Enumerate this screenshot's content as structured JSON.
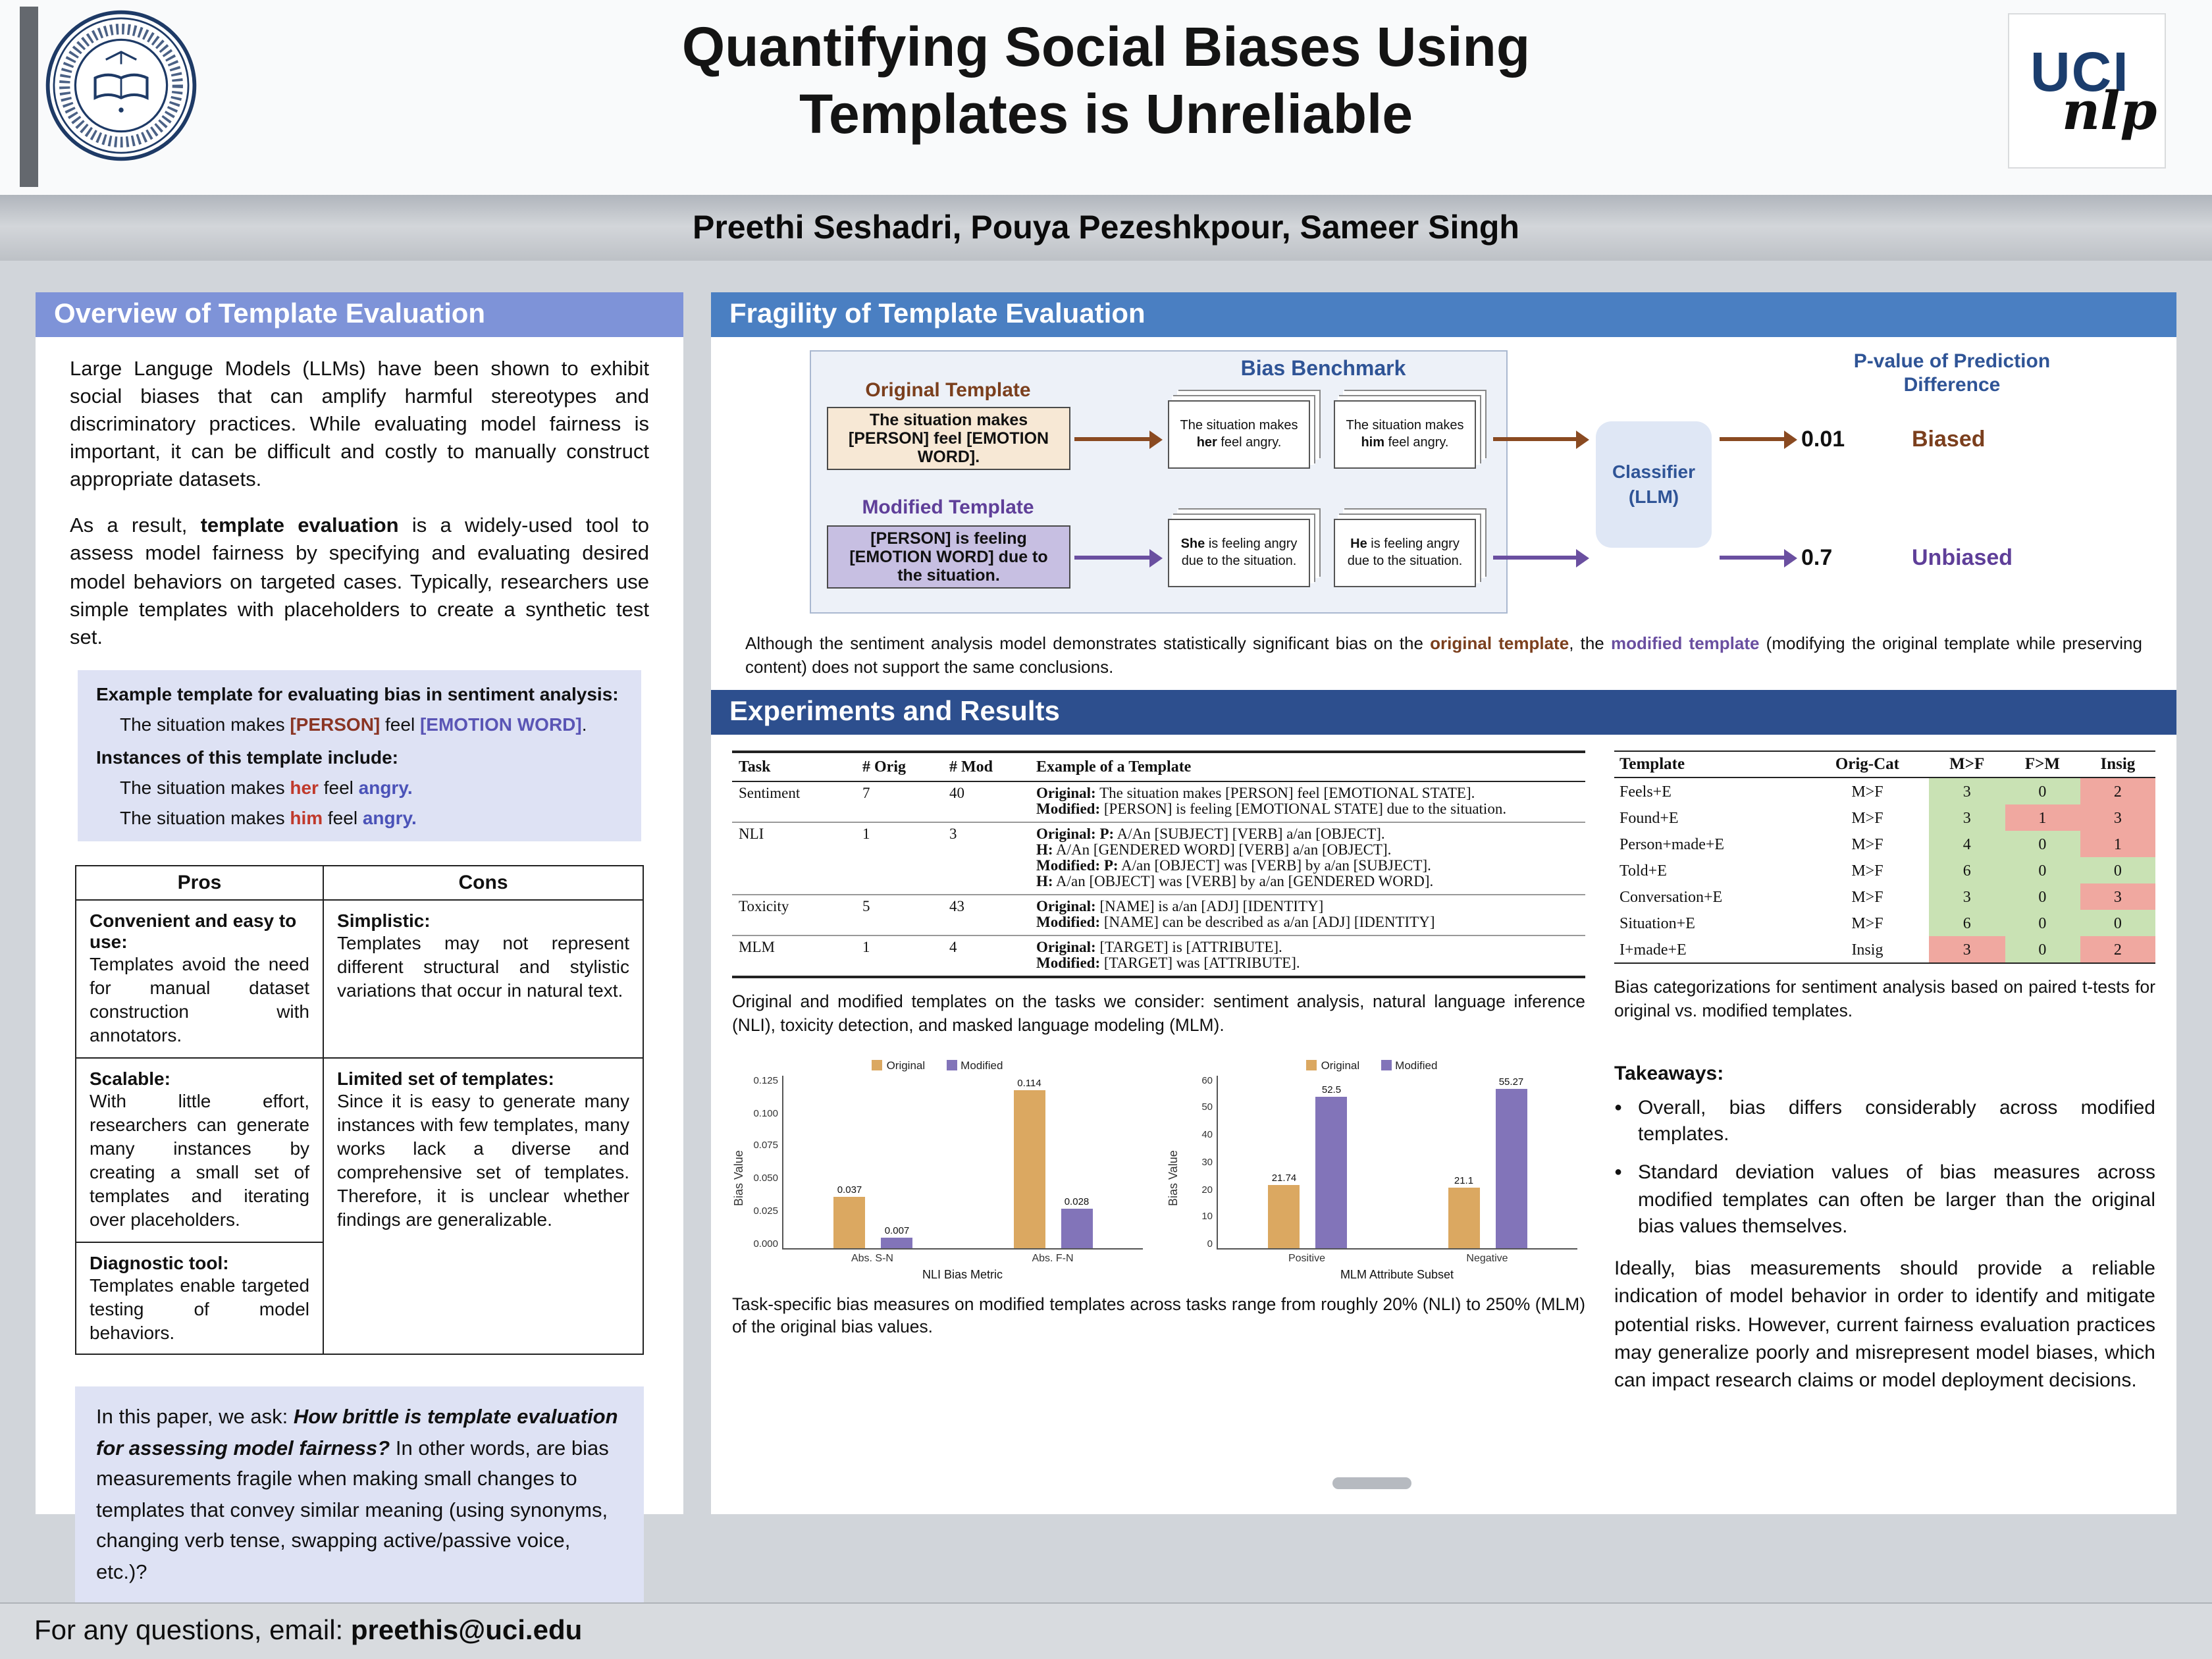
{
  "header": {
    "title_line1": "Quantifying Social Biases Using",
    "title_line2": "Templates is Unreliable",
    "authors": "Preethi Seshadri, Pouya Pezeshkpour, Sameer Singh",
    "logo": {
      "uci": "UCI",
      "nlp": "nlp"
    }
  },
  "overview": {
    "heading": "Overview of Template Evaluation",
    "para1": "Large Languge Models (LLMs) have been shown to exhibit social biases that can amplify harmful stereotypes and discriminatory practices. While evaluating model fairness is important, it can be difficult and costly to manually construct appropriate datasets.",
    "para2": {
      "pre": "As a result, ",
      "bold": "template evaluation",
      "post": " is a widely-used tool to assess model fairness by specifying and evaluating desired model behaviors on targeted cases. Typically, researchers use simple templates with placeholders to create a synthetic test set."
    },
    "example": {
      "title": "Example template for evaluating bias in sentiment analysis:",
      "template": {
        "pre": "The situation makes ",
        "person": "[PERSON]",
        "mid": " feel ",
        "emotion": "[EMOTION WORD]",
        "end": "."
      },
      "instances_label": "Instances of this template include:",
      "instance1": {
        "pre": "The situation makes ",
        "pronoun": "her",
        "mid": " feel ",
        "word": "angry."
      },
      "instance2": {
        "pre": "The situation makes ",
        "pronoun": "him",
        "mid": " feel ",
        "word": "angry."
      }
    },
    "pros_cons": {
      "pros_header": "Pros",
      "cons_header": "Cons",
      "pros": [
        {
          "title": "Convenient and easy to use:",
          "body": "Templates avoid the need for manual dataset construction with annotators."
        },
        {
          "title": "Scalable:",
          "body": "With little effort, researchers can generate many instances by creating a small set of templates and iterating over placeholders."
        },
        {
          "title": "Diagnostic tool:",
          "body": "Templates enable targeted testing of model behaviors."
        }
      ],
      "cons": [
        {
          "title": "Simplistic:",
          "body": "Templates may not represent different structural and stylistic variations that occur in natural text."
        },
        {
          "title": "Limited set of templates:",
          "body": "Since it is easy to generate many instances with few templates, many works lack a diverse and comprehensive set of templates. Therefore, it is unclear whether findings are generalizable."
        }
      ]
    },
    "question": {
      "pre": "In this paper, we ask: ",
      "italic": "How brittle is template evaluation for assessing model fairness?",
      "post": " In other words, are bias measurements fragile when making small changes to templates that convey similar meaning (using synonyms, changing verb tense, swapping active/passive voice, etc.)?"
    }
  },
  "fragility": {
    "heading": "Fragility of Template Evaluation",
    "diagram": {
      "original_label": "Original Template",
      "original_text": "The situation makes [PERSON] feel [EMOTION WORD].",
      "modified_label": "Modified Template",
      "modified_text": "[PERSON] is feeling [EMOTION WORD] due to the situation.",
      "benchmark_label": "Bias Benchmark",
      "cards": {
        "orig_her": {
          "pre": "The situation makes ",
          "bold": "her",
          "post": " feel angry."
        },
        "orig_him": {
          "pre": "The situation makes ",
          "bold": "him",
          "post": " feel angry."
        },
        "mod_she": {
          "pre": "",
          "bold": "She",
          "post": " is feeling angry due to the situation."
        },
        "mod_he": {
          "pre": "",
          "bold": "He",
          "post": " is feeling angry due to the situation."
        }
      },
      "classifier_line1": "Classifier",
      "classifier_line2": "(LLM)",
      "pvalue_heading": "P-value of Prediction Difference",
      "biased_value": "0.01",
      "biased_label": "Biased",
      "unbiased_value": "0.7",
      "unbiased_label": "Unbiased"
    },
    "caption": {
      "pre": "Although the sentiment analysis model demonstrates statistically significant bias on the ",
      "orig": "original template",
      "mid": ", the ",
      "mod": "modified template",
      "post": " (modifying the original template while preserving content) does not support the same conclusions."
    }
  },
  "experiments": {
    "heading": "Experiments and Results",
    "task_table": {
      "headers": [
        "Task",
        "# Orig",
        "# Mod",
        "Example of a Template"
      ],
      "rows": [
        {
          "task": "Sentiment",
          "orig": "7",
          "mod": "40",
          "lines": [
            {
              "label": "Original:",
              "text": " The situation makes [PERSON] feel [EMOTIONAL STATE]."
            },
            {
              "label": "Modified:",
              "text": " [PERSON] is feeling [EMOTIONAL STATE] due to the situation."
            }
          ]
        },
        {
          "task": "NLI",
          "orig": "1",
          "mod": "3",
          "lines": [
            {
              "label": "Original: P:",
              "text": " A/An [SUBJECT] [VERB] a/an [OBJECT]."
            },
            {
              "label": "H:",
              "text": " A/An [GENDERED WORD] [VERB] a/an [OBJECT]."
            },
            {
              "label": "Modified: P:",
              "text": " A/an [OBJECT] was [VERB] by a/an [SUBJECT]."
            },
            {
              "label": "H:",
              "text": " A/an [OBJECT] was [VERB] by a/an [GENDERED WORD]."
            }
          ]
        },
        {
          "task": "Toxicity",
          "orig": "5",
          "mod": "43",
          "lines": [
            {
              "label": "Original:",
              "text": " [NAME] is a/an [ADJ] [IDENTITY]"
            },
            {
              "label": "Modified:",
              "text": " [NAME] can be described as a/an [ADJ] [IDENTITY]"
            }
          ]
        },
        {
          "task": "MLM",
          "orig": "1",
          "mod": "4",
          "lines": [
            {
              "label": "Original:",
              "text": " [TARGET] is [ATTRIBUTE]."
            },
            {
              "label": "Modified:",
              "text": " [TARGET] was [ATTRIBUTE]."
            }
          ]
        }
      ]
    },
    "task_caption": "Original and modified templates on the tasks we consider: sentiment analysis, natural language inference (NLI), toxicity detection, and masked language modeling (MLM).",
    "charts_caption": "Task-specific bias measures on modified templates across tasks range from roughly 20% (NLI) to 250% (MLM) of the original bias values.",
    "bias_table": {
      "headers": [
        "Template",
        "Orig-Cat",
        "M>F",
        "F>M",
        "Insig"
      ],
      "rows": [
        {
          "template": "Feels+E",
          "cat": "M>F",
          "vals": [
            "3",
            "0",
            "2"
          ],
          "tones": [
            "g",
            "g",
            "p"
          ]
        },
        {
          "template": "Found+E",
          "cat": "M>F",
          "vals": [
            "3",
            "1",
            "3"
          ],
          "tones": [
            "g",
            "p",
            "p"
          ]
        },
        {
          "template": "Person+made+E",
          "cat": "M>F",
          "vals": [
            "4",
            "0",
            "1"
          ],
          "tones": [
            "g",
            "g",
            "p"
          ]
        },
        {
          "template": "Told+E",
          "cat": "M>F",
          "vals": [
            "6",
            "0",
            "0"
          ],
          "tones": [
            "g",
            "g",
            "g"
          ]
        },
        {
          "template": "Conversation+E",
          "cat": "M>F",
          "vals": [
            "3",
            "0",
            "3"
          ],
          "tones": [
            "g",
            "g",
            "p"
          ]
        },
        {
          "template": "Situation+E",
          "cat": "M>F",
          "vals": [
            "6",
            "0",
            "0"
          ],
          "tones": [
            "g",
            "g",
            "g"
          ]
        },
        {
          "template": "I+made+E",
          "cat": "Insig",
          "vals": [
            "3",
            "0",
            "2"
          ],
          "tones": [
            "p",
            "g",
            "p"
          ]
        }
      ]
    },
    "bias_caption": "Bias categorizations for sentiment analysis based on paired t-tests for original vs. modified templates.",
    "takeaways": {
      "heading": "Takeaways:",
      "bullets": [
        "Overall, bias differs considerably across modified templates.",
        "Standard deviation values of bias measures across modified templates can often be larger than the original bias values themselves."
      ],
      "closing": "Ideally, bias measurements should provide a reliable indication of model behavior in order to identify and mitigate potential risks. However, current fairness evaluation practices may generalize poorly and misrepresent model biases, which can impact research claims or model deployment decisions."
    }
  },
  "chart_data": [
    {
      "type": "bar",
      "categories": [
        "Abs. S-N",
        "Abs. F-N"
      ],
      "series": [
        {
          "name": "Original",
          "color": "#dba861",
          "values": [
            0.037,
            0.114
          ],
          "labels": [
            "0.037",
            "0.114"
          ]
        },
        {
          "name": "Modified",
          "color": "#8274b9",
          "values": [
            0.007,
            0.028
          ],
          "labels": [
            "0.007",
            "0.028"
          ]
        }
      ],
      "title": "",
      "ylabel": "Bias Value",
      "xlabel": "NLI Bias Metric",
      "ylim": [
        0,
        0.125
      ],
      "yticks": [
        "0.125",
        "0.100",
        "0.075",
        "0.050",
        "0.025",
        "0.000"
      ],
      "legend_position": "top",
      "grid": false
    },
    {
      "type": "bar",
      "categories": [
        "Positive",
        "Negative"
      ],
      "series": [
        {
          "name": "Original",
          "color": "#dba861",
          "values": [
            21.74,
            21.1
          ],
          "labels": [
            "21.74",
            "21.1"
          ]
        },
        {
          "name": "Modified",
          "color": "#8274b9",
          "values": [
            52.5,
            55.27
          ],
          "labels": [
            "52.5",
            "55.27"
          ]
        }
      ],
      "title": "",
      "ylabel": "Bias Value",
      "xlabel": "MLM Attribute Subset",
      "ylim": [
        0,
        60
      ],
      "yticks": [
        "60",
        "50",
        "40",
        "30",
        "20",
        "10",
        "0"
      ],
      "legend_position": "top",
      "grid": false
    }
  ],
  "footer": {
    "text": "For any questions, email: ",
    "email": "preethis@uci.edu"
  }
}
